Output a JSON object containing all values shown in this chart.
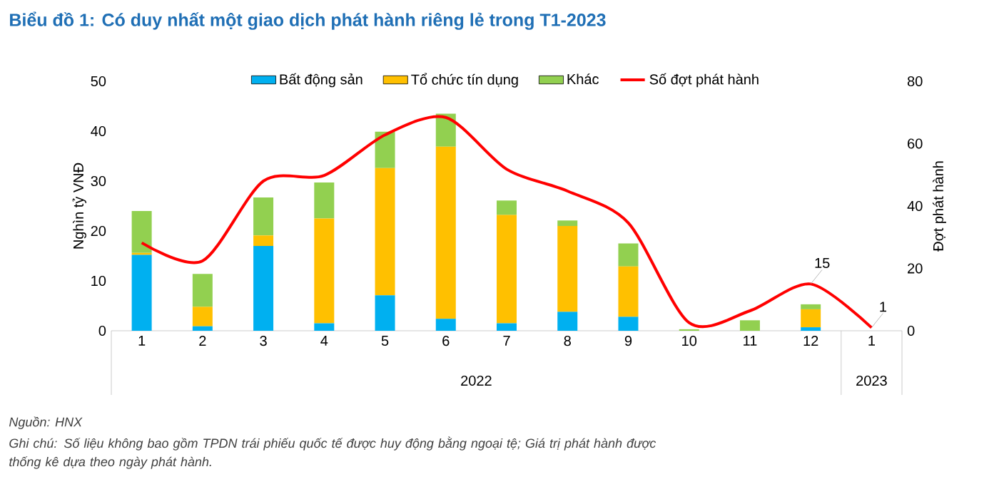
{
  "chart_data": {
    "type": "bar",
    "title": "Biểu đồ 1: Có duy nhất một giao dịch phát hành riêng lẻ trong T1-2023",
    "ylabel": "Nghìn tỷ VNĐ",
    "y2label": "Đợt phát hành",
    "categories": [
      "1",
      "2",
      "3",
      "4",
      "5",
      "6",
      "7",
      "8",
      "9",
      "10",
      "11",
      "12",
      "1"
    ],
    "stacked": true,
    "legend": "top",
    "series": [
      {
        "name": "Bất động sản",
        "color": "#00b0f0",
        "values": [
          15.2,
          0.9,
          17.0,
          1.5,
          7.1,
          2.4,
          1.5,
          3.8,
          2.8,
          0,
          0,
          0.7,
          0
        ]
      },
      {
        "name": "Tổ chức tín dụng",
        "color": "#ffc000",
        "values": [
          0.4,
          3.9,
          2.1,
          21.0,
          25.5,
          34.5,
          21.7,
          17.2,
          10.1,
          0,
          0,
          3.6,
          0
        ]
      },
      {
        "name": "Khác",
        "color": "#92d050",
        "values": [
          8.4,
          6.6,
          7.6,
          7.2,
          7.3,
          6.6,
          2.9,
          1.1,
          4.6,
          0.3,
          2.1,
          1.0,
          0
        ]
      },
      {
        "name": "Số đợt phát hành",
        "color": "#ff0000",
        "type": "line",
        "axis": "y2",
        "values": [
          28.2,
          22.4,
          48.0,
          49.8,
          62.8,
          68.4,
          51.8,
          44.8,
          34.6,
          2.6,
          6.4,
          15,
          1
        ],
        "value_labels": [
          null,
          null,
          null,
          null,
          null,
          null,
          null,
          null,
          null,
          null,
          null,
          "15",
          "1"
        ]
      }
    ],
    "ylim": [
      0,
      50
    ],
    "yticks": [
      0,
      10,
      20,
      30,
      40,
      50
    ],
    "y2lim": [
      0,
      80
    ],
    "y2ticks": [
      0,
      20,
      40,
      60,
      80
    ],
    "annotations": [
      "2022",
      "2023",
      "Nguồn: HNX",
      "Ghi chú: Số liệu không bao gồm TPDN trái phiếu quốc tế được huy động bằng ngoại tệ; Giá trị phát hành được thống kê dựa theo ngày phát hành."
    ]
  }
}
